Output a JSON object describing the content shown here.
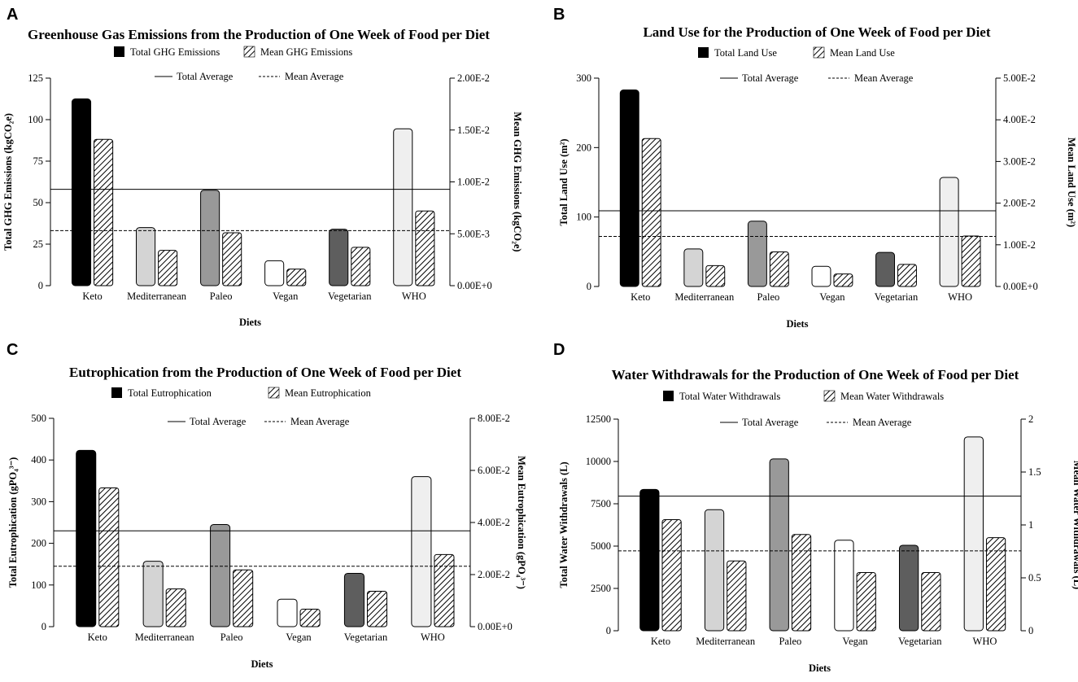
{
  "chart_data": [
    {
      "panel": "A",
      "type": "bar",
      "title": "Greenhouse Gas Emissions from the Production of One Week of Food per Diet",
      "xlabel": "Diets",
      "ylabel": "Total GHG Emissions (kgCO₂e)",
      "y2label": "Mean GHG Emissions (kgCO₂e)",
      "categories": [
        "Keto",
        "Mediterranean",
        "Paleo",
        "Vegan",
        "Vegetarian",
        "WHO"
      ],
      "ylim": [
        0,
        125
      ],
      "yticks": [
        0,
        25,
        50,
        75,
        100,
        125
      ],
      "y2lim": [
        0,
        0.02
      ],
      "y2tick_labels": [
        "0.00E+0",
        "5.00E-3",
        "1.00E-2",
        "1.50E-2",
        "2.00E-2"
      ],
      "series": [
        {
          "name": "Total GHG Emissions",
          "axis": "left",
          "values": [
            112.5,
            35,
            57.5,
            15,
            34,
            94.5
          ]
        },
        {
          "name": "Mean GHG Emissions",
          "axis": "right",
          "values": [
            0.0141,
            0.0034,
            0.0051,
            0.0016,
            0.0037,
            0.0072
          ]
        }
      ],
      "lines": [
        {
          "name": "Total Average",
          "axis": "left",
          "style": "solid",
          "value": 58
        },
        {
          "name": "Mean Average",
          "axis": "right",
          "style": "dashed",
          "value": 0.0053
        }
      ]
    },
    {
      "panel": "B",
      "type": "bar",
      "title": "Land Use for the Production of One Week of Food per Diet",
      "xlabel": "Diets",
      "ylabel": "Total Land Use (m²)",
      "y2label": "Mean Land Use (m²)",
      "categories": [
        "Keto",
        "Mediterranean",
        "Paleo",
        "Vegan",
        "Vegetarian",
        "WHO"
      ],
      "ylim": [
        0,
        300
      ],
      "yticks": [
        0,
        100,
        200,
        300
      ],
      "y2lim": [
        0,
        0.05
      ],
      "y2tick_labels": [
        "0.00E+0",
        "1.00E-2",
        "2.00E-2",
        "3.00E-2",
        "4.00E-2",
        "5.00E-2"
      ],
      "series": [
        {
          "name": "Total Land Use",
          "axis": "left",
          "values": [
            283,
            54,
            94,
            29,
            49,
            157
          ]
        },
        {
          "name": "Mean Land Use",
          "axis": "right",
          "values": [
            0.0355,
            0.005,
            0.0083,
            0.003,
            0.0053,
            0.0121
          ]
        }
      ],
      "lines": [
        {
          "name": "Total Average",
          "axis": "left",
          "style": "solid",
          "value": 109
        },
        {
          "name": "Mean Average",
          "axis": "right",
          "style": "dashed",
          "value": 0.012
        }
      ]
    },
    {
      "panel": "C",
      "type": "bar",
      "title": "Eutrophication from the Production of One Week of Food per Diet",
      "xlabel": "Diets",
      "ylabel": "Total Eutrophication (gPO₄³⁻)",
      "y2label": "Mean Eutrophication (gPO₄³⁻)",
      "categories": [
        "Keto",
        "Mediterranean",
        "Paleo",
        "Vegan",
        "Vegetarian",
        "WHO"
      ],
      "ylim": [
        0,
        500
      ],
      "yticks": [
        0,
        100,
        200,
        300,
        400,
        500
      ],
      "y2lim": [
        0,
        0.08
      ],
      "y2tick_labels": [
        "0.00E+0",
        "2.00E-2",
        "4.00E-2",
        "6.00E-2",
        "8.00E-2"
      ],
      "series": [
        {
          "name": "Total Eutrophication",
          "axis": "left",
          "values": [
            423,
            157,
            245,
            66,
            128,
            360
          ]
        },
        {
          "name": "Mean Eutrophication",
          "axis": "right",
          "values": [
            0.0533,
            0.0145,
            0.0218,
            0.0067,
            0.0136,
            0.0277
          ]
        }
      ],
      "lines": [
        {
          "name": "Total Average",
          "axis": "left",
          "style": "solid",
          "value": 230
        },
        {
          "name": "Mean Average",
          "axis": "right",
          "style": "dashed",
          "value": 0.0232
        }
      ]
    },
    {
      "panel": "D",
      "type": "bar",
      "title": "Water Withdrawals for the Production of One Week of Food per Diet",
      "xlabel": "Diets",
      "ylabel": "Total Water Withdrawals (L)",
      "y2label": "Mean Water Withdrawals (L)",
      "categories": [
        "Keto",
        "Mediterranean",
        "Paleo",
        "Vegan",
        "Vegetarian",
        "WHO"
      ],
      "ylim": [
        0,
        12500
      ],
      "yticks": [
        0,
        2500,
        5000,
        7500,
        10000,
        12500
      ],
      "y2lim": [
        0,
        2
      ],
      "y2tick_labels": [
        "0",
        "0.5",
        "1",
        "1.5",
        "2"
      ],
      "series": [
        {
          "name": "Total Water Withdrawals",
          "axis": "left",
          "values": [
            8350,
            7150,
            10150,
            5350,
            5050,
            11450
          ]
        },
        {
          "name": "Mean Water Withdrawals",
          "axis": "right",
          "values": [
            1.05,
            0.66,
            0.91,
            0.55,
            0.55,
            0.88
          ]
        }
      ],
      "lines": [
        {
          "name": "Total Average",
          "axis": "left",
          "style": "solid",
          "value": 7950
        },
        {
          "name": "Mean Average",
          "axis": "right",
          "style": "dashed",
          "value": 0.755
        }
      ]
    }
  ],
  "style": {
    "bar_colors": [
      "#000000",
      "#d4d4d4",
      "#999999",
      "#ffffff",
      "#5e5e5e",
      "#efefef"
    ],
    "axis_color": "#000000",
    "hatch_color": "#000000"
  }
}
